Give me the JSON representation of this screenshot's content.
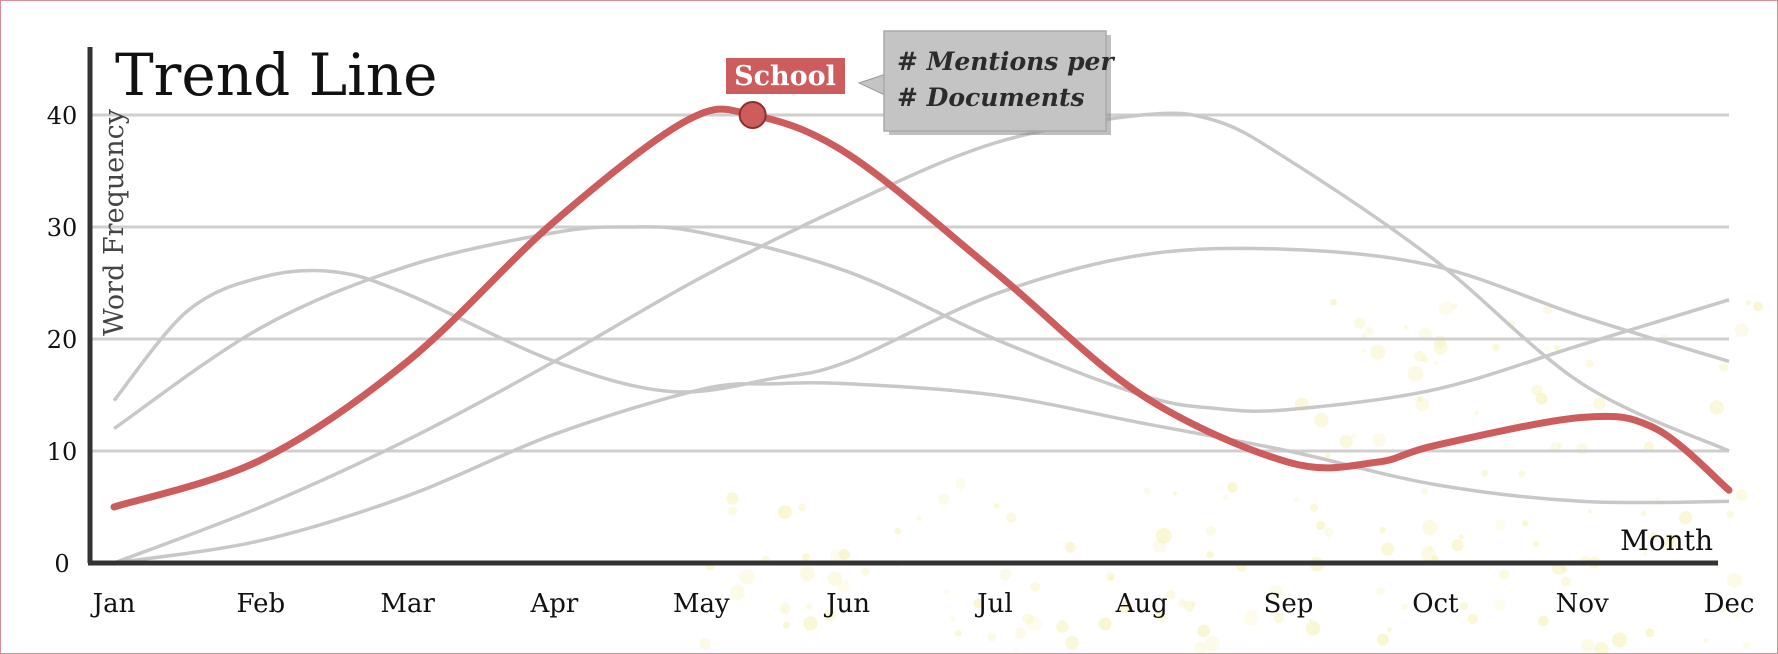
{
  "chart_data": {
    "type": "line",
    "title": "Trend Line",
    "xlabel": "Month",
    "ylabel": "Word Frequency",
    "categories": [
      "Jan",
      "Feb",
      "Mar",
      "Apr",
      "May",
      "Jun",
      "Jul",
      "Aug",
      "Sep",
      "Oct",
      "Nov",
      "Dec"
    ],
    "yticks": [
      0,
      10,
      20,
      30,
      40
    ],
    "ylim": [
      0,
      45
    ],
    "grid": true,
    "highlight": {
      "series_name": "School",
      "peak_x": 5.35,
      "peak_y": 40,
      "callout_lines": [
        "# Mentions per",
        "# Documents"
      ]
    },
    "series": [
      {
        "name": "School",
        "highlight": true,
        "color": "#cd5c5c",
        "points": [
          [
            1,
            5
          ],
          [
            2,
            9.2
          ],
          [
            3,
            18
          ],
          [
            4,
            30.5
          ],
          [
            4.9,
            39.5
          ],
          [
            5.35,
            40
          ],
          [
            6,
            36.5
          ],
          [
            7,
            26
          ],
          [
            8,
            15
          ],
          [
            9,
            9
          ],
          [
            9.6,
            9
          ],
          [
            10,
            10.5
          ],
          [
            11,
            13
          ],
          [
            11.5,
            12
          ],
          [
            12,
            6.5
          ]
        ]
      },
      {
        "color": "#c8c8c8",
        "points": [
          [
            1,
            14.5
          ],
          [
            1.5,
            22.5
          ],
          [
            2,
            25.5
          ],
          [
            2.5,
            26
          ],
          [
            3,
            24
          ],
          [
            4,
            18
          ],
          [
            4.8,
            15.3
          ],
          [
            5.5,
            16.5
          ],
          [
            6,
            18
          ],
          [
            7,
            24
          ],
          [
            8,
            27.5
          ],
          [
            9,
            28
          ],
          [
            10,
            26.5
          ],
          [
            11,
            22
          ],
          [
            12,
            18
          ]
        ]
      },
      {
        "color": "#c8c8c8",
        "points": [
          [
            1,
            12
          ],
          [
            2,
            21
          ],
          [
            3,
            26.5
          ],
          [
            4,
            29.5
          ],
          [
            4.5,
            30
          ],
          [
            5,
            29.5
          ],
          [
            6,
            26
          ],
          [
            7,
            20
          ],
          [
            8,
            15
          ],
          [
            8.5,
            13.8
          ],
          [
            9,
            13.7
          ],
          [
            10,
            15.5
          ],
          [
            11,
            19.5
          ],
          [
            12,
            23.5
          ]
        ]
      },
      {
        "color": "#c8c8c8",
        "points": [
          [
            1,
            0
          ],
          [
            2,
            5
          ],
          [
            3,
            11
          ],
          [
            4,
            18
          ],
          [
            5,
            25.5
          ],
          [
            6,
            32
          ],
          [
            7,
            37.5
          ],
          [
            8,
            40
          ],
          [
            8.5,
            39.5
          ],
          [
            9,
            36
          ],
          [
            10,
            27
          ],
          [
            11,
            16
          ],
          [
            12,
            10
          ]
        ]
      },
      {
        "color": "#c8c8c8",
        "points": [
          [
            1,
            0
          ],
          [
            2,
            2
          ],
          [
            3,
            6
          ],
          [
            4,
            11.5
          ],
          [
            5,
            15.5
          ],
          [
            5.5,
            16
          ],
          [
            6,
            16
          ],
          [
            7,
            15
          ],
          [
            8,
            12.5
          ],
          [
            9,
            10
          ],
          [
            10,
            7
          ],
          [
            11,
            5.5
          ],
          [
            12,
            5.5
          ]
        ]
      }
    ]
  }
}
